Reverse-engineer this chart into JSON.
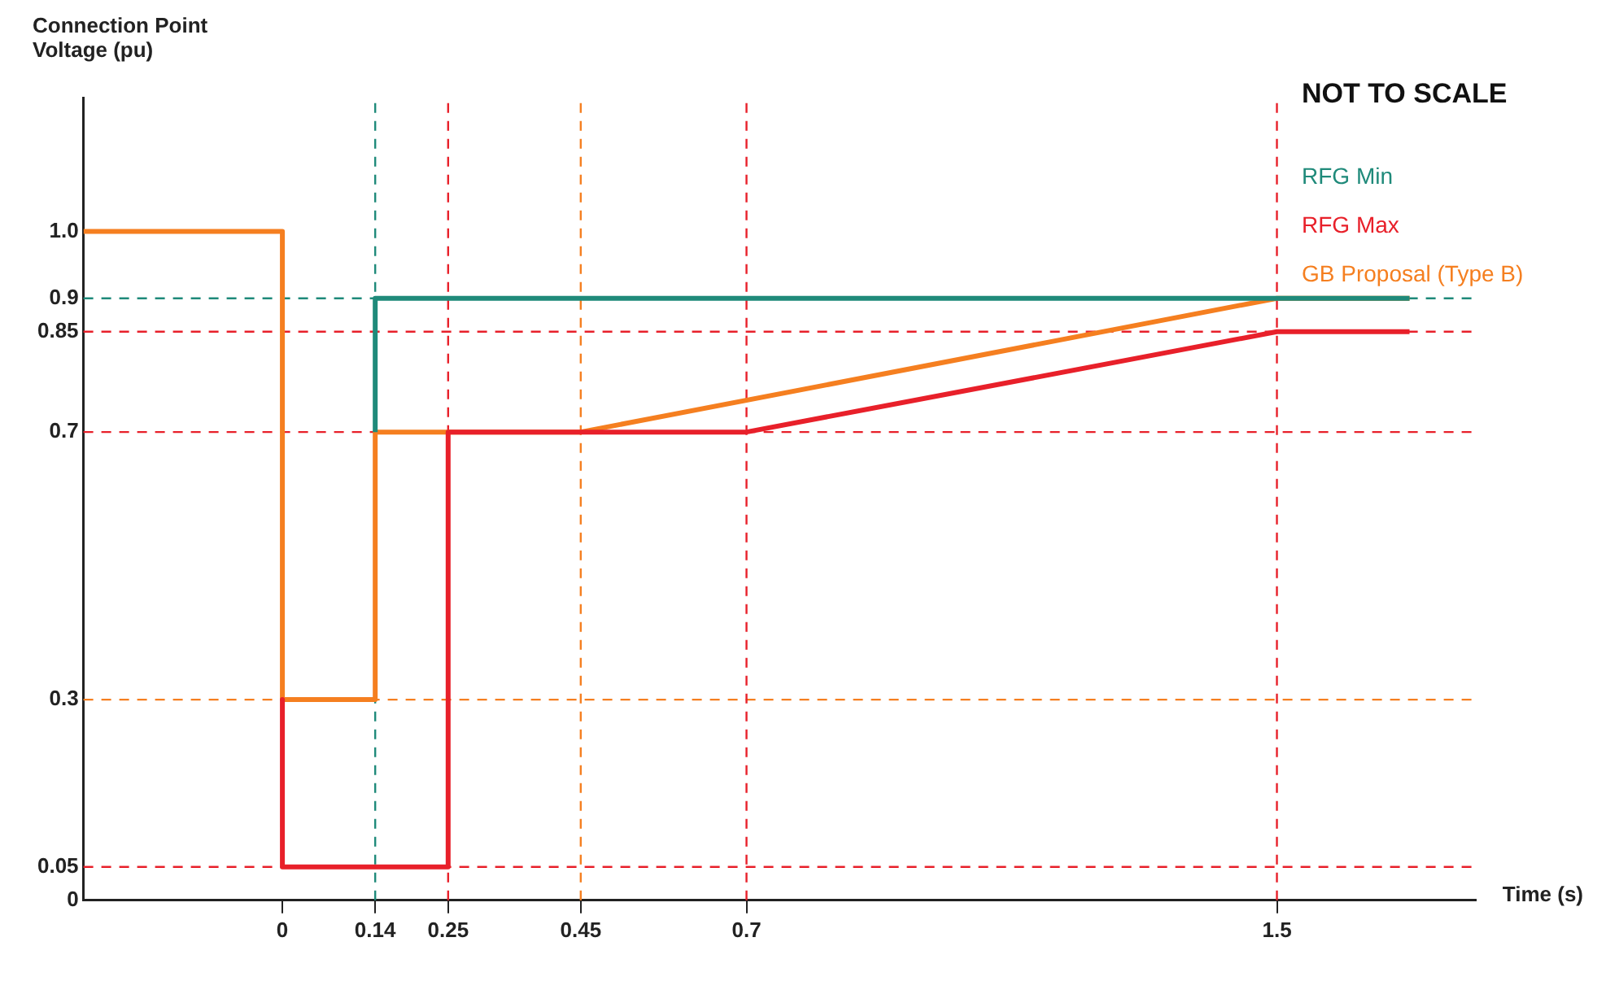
{
  "chart_data": {
    "type": "line",
    "xlabel": "Time (s)",
    "ylabel": "Connection Point Voltage (pu)",
    "annotations": [
      "NOT TO SCALE"
    ],
    "xlim": [
      -0.3,
      1.8
    ],
    "ylim": [
      0,
      1.2
    ],
    "xticks": [
      0,
      0.14,
      0.25,
      0.45,
      0.7,
      1.5
    ],
    "yticks": [
      0,
      0.05,
      0.3,
      0.7,
      0.85,
      0.9,
      {
        "value": 1,
        "label": "1.0"
      }
    ],
    "series": [
      {
        "name": "RFG Min",
        "color": "#1f8a7a",
        "x": [
          0.14,
          0.14,
          1.7
        ],
        "values": [
          0.7,
          0.9,
          0.9
        ]
      },
      {
        "name": "RFG Max",
        "color": "#e8202a",
        "x": [
          0,
          0,
          0.25,
          0.25,
          0.7,
          1.5,
          1.7
        ],
        "values": [
          0.3,
          0.05,
          0.05,
          0.7,
          0.7,
          0.85,
          0.85
        ]
      },
      {
        "name": "GB Proposal (Type B)",
        "color": "#f57f20",
        "x": [
          -0.3,
          0,
          0,
          0.14,
          0.14,
          0.45,
          1.5,
          1.7
        ],
        "values": [
          1,
          1,
          0.3,
          0.3,
          0.7,
          0.7,
          0.9,
          0.9
        ]
      }
    ],
    "ref_lines": [
      {
        "axis": "y",
        "value": 0.9,
        "color": "#1f8a7a",
        "line_style": "dashed"
      },
      {
        "axis": "y",
        "value": 0.85,
        "color": "#e8202a",
        "line_style": "dashed"
      },
      {
        "axis": "y",
        "value": 0.7,
        "color": "#e8202a",
        "line_style": "dashed"
      },
      {
        "axis": "y",
        "value": 0.3,
        "color": "#f57f20",
        "line_style": "dashed"
      },
      {
        "axis": "y",
        "value": 0.05,
        "color": "#e8202a",
        "line_style": "dashed"
      },
      {
        "axis": "x",
        "value": 0.14,
        "color": "#1f8a7a",
        "line_style": "dashed"
      },
      {
        "axis": "x",
        "value": 0.25,
        "color": "#e8202a",
        "line_style": "dashed"
      },
      {
        "axis": "x",
        "value": 0.45,
        "color": "#f57f20",
        "line_style": "dashed"
      },
      {
        "axis": "x",
        "value": 0.7,
        "color": "#e8202a",
        "line_style": "dashed"
      },
      {
        "axis": "x",
        "value": 1.5,
        "color": "#e8202a",
        "line_style": "dashed"
      }
    ],
    "grid": false,
    "legend": "top right",
    "marker": "none",
    "line_style": "solid"
  }
}
